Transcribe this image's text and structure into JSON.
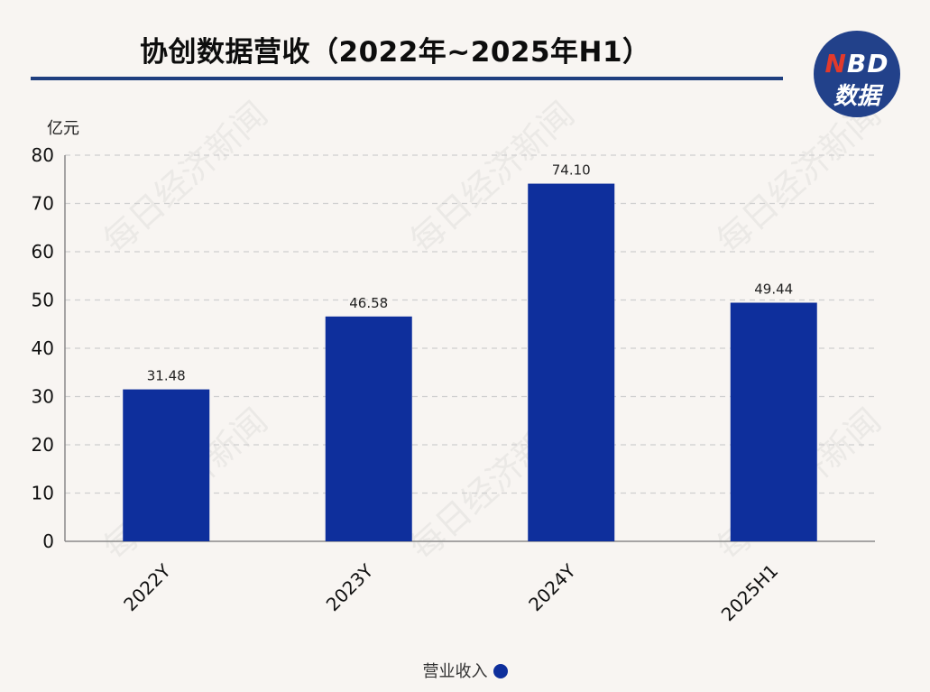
{
  "header": {
    "title": "协创数据营收（2022年~2025年H1）",
    "logo_top": "NBD",
    "logo_bottom": "数据"
  },
  "watermark": "每日经济新闻",
  "colors": {
    "bar": "#0e2f9c",
    "rule": "#1f3f7f",
    "logo_bg": "#22418a",
    "background": "#f8f5f2"
  },
  "chart_data": {
    "type": "bar",
    "title": "协创数据营收（2022年~2025年H1）",
    "ylabel": "亿元",
    "xlabel": "",
    "categories": [
      "2022Y",
      "2023Y",
      "2024Y",
      "2025H1"
    ],
    "series": [
      {
        "name": "营业收入",
        "values": [
          31.48,
          46.58,
          74.1,
          49.44
        ],
        "labels": [
          "31.48",
          "46.58",
          "74.10",
          "49.44"
        ]
      }
    ],
    "ylim": [
      0,
      80
    ],
    "yticks": [
      0,
      10,
      20,
      30,
      40,
      50,
      60,
      70,
      80
    ],
    "grid": true,
    "legend": "bottom-center"
  }
}
